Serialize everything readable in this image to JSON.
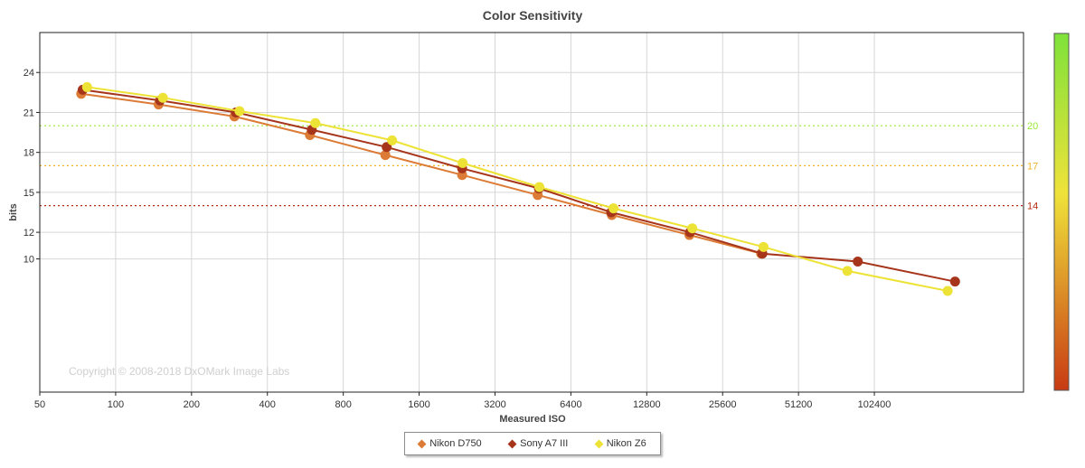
{
  "chart_data": {
    "type": "line",
    "title": "Color Sensitivity",
    "xlabel": "Measured ISO",
    "ylabel": "bits",
    "x_scale": "log2",
    "x_ticks": [
      "50",
      "100",
      "200",
      "400",
      "800",
      "1600",
      "3200",
      "6400",
      "12800",
      "25600",
      "51200",
      "102400"
    ],
    "xlim": [
      50,
      400000
    ],
    "y_ticks": [
      10,
      12,
      15,
      18,
      21,
      24
    ],
    "ylim": [
      0,
      27
    ],
    "grid": true,
    "legend_position": "bottom-center",
    "reference_lines": [
      {
        "value": 20,
        "label": "20",
        "color": "#99e833"
      },
      {
        "value": 17,
        "label": "17",
        "color": "#f0b32a"
      },
      {
        "value": 14,
        "label": "14",
        "color": "#b52a10"
      }
    ],
    "series": [
      {
        "name": "Nikon D750",
        "color": "#dc7b35",
        "points": [
          [
            73,
            22.4
          ],
          [
            148,
            21.6
          ],
          [
            296,
            20.7
          ],
          [
            590,
            19.3
          ],
          [
            1175,
            17.8
          ],
          [
            2370,
            16.3
          ],
          [
            4725,
            14.8
          ],
          [
            9300,
            13.3
          ],
          [
            18900,
            11.8
          ],
          [
            36400,
            10.4
          ]
        ]
      },
      {
        "name": "Sony A7 III",
        "color": "#a6351c",
        "points": [
          [
            74,
            22.7
          ],
          [
            150,
            21.9
          ],
          [
            300,
            21.0
          ],
          [
            600,
            19.7
          ],
          [
            1190,
            18.4
          ],
          [
            2370,
            16.8
          ],
          [
            4780,
            15.3
          ],
          [
            9250,
            13.5
          ],
          [
            19000,
            12.0
          ],
          [
            36800,
            10.4
          ],
          [
            88000,
            9.8
          ],
          [
            214000,
            8.3
          ]
        ]
      },
      {
        "name": "Nikon Z6",
        "color": "#ede336",
        "points": [
          [
            77,
            22.9
          ],
          [
            154,
            22.1
          ],
          [
            310,
            21.1
          ],
          [
            620,
            20.2
          ],
          [
            1250,
            18.9
          ],
          [
            2380,
            17.2
          ],
          [
            4800,
            15.4
          ],
          [
            9450,
            13.8
          ],
          [
            19400,
            12.3
          ],
          [
            37200,
            10.9
          ],
          [
            80000,
            9.1
          ],
          [
            200000,
            7.6
          ]
        ]
      }
    ]
  },
  "watermark": "Copyright © 2008-2018 DxOMark Image Labs",
  "colorbar": {
    "top_color": "#7ee23a",
    "middle_color": "#efe23a",
    "bottom_color": "#c83a14"
  }
}
